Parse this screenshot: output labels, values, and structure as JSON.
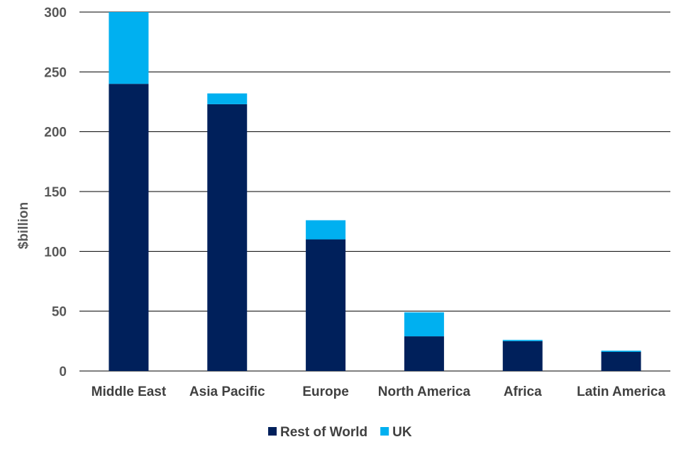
{
  "chart_data": {
    "type": "bar",
    "stacked": true,
    "title": "",
    "xlabel": "",
    "ylabel": "$billion",
    "ylim": [
      0,
      300
    ],
    "yticks": [
      0,
      50,
      100,
      150,
      200,
      250,
      300
    ],
    "grid": true,
    "legend_position": "bottom",
    "categories": [
      "Middle East",
      "Asia Pacific",
      "Europe",
      "North America",
      "Africa",
      "Latin America"
    ],
    "series": [
      {
        "name": "Rest of World",
        "color": "#00205B",
        "values": [
          240,
          223,
          110,
          29,
          25,
          16
        ]
      },
      {
        "name": "UK",
        "color": "#00B0F0",
        "values": [
          60,
          9,
          16,
          20,
          1,
          1
        ]
      }
    ]
  }
}
